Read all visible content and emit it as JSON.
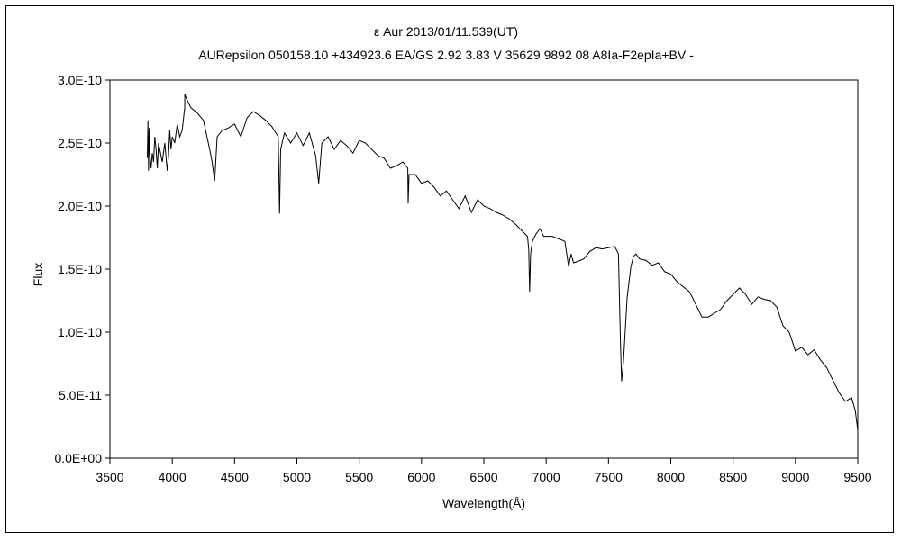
{
  "chart_data": {
    "type": "line",
    "title": "ε  Aur   2013/01/11.539(UT)",
    "subtitle": "AURepsilon 050158.10 +434923.6 EA/GS 2.92 3.83 V 35629 9892 08 A8Ia-F2epIa+BV -",
    "xlabel": "Wavelength(Å)",
    "ylabel": "Flux",
    "xlim": [
      3500,
      9500
    ],
    "ylim": [
      0,
      3e-10
    ],
    "xticks": [
      "3500",
      "4000",
      "4500",
      "5000",
      "5500",
      "6000",
      "6500",
      "7000",
      "7500",
      "8000",
      "8500",
      "9000",
      "9500"
    ],
    "yticks": [
      "0.0E+00",
      "5.0E-11",
      "1.0E-10",
      "1.5E-10",
      "2.0E-10",
      "2.5E-10",
      "3.0E-10"
    ],
    "grid": false,
    "legend": "none",
    "line_color": "#000000",
    "series": [
      {
        "x": [
          3800,
          3805,
          3810,
          3815,
          3820,
          3830,
          3840,
          3850,
          3860,
          3870,
          3880,
          3890,
          3900,
          3920,
          3940,
          3960,
          3970,
          3980,
          3990,
          4000,
          4020,
          4040,
          4060,
          4080,
          4100,
          4101,
          4110,
          4130,
          4150,
          4200,
          4250,
          4300,
          4320,
          4340,
          4345,
          4360,
          4400,
          4450,
          4500,
          4550,
          4600,
          4650,
          4700,
          4750,
          4800,
          4850,
          4861,
          4870,
          4900,
          4950,
          5000,
          5050,
          5100,
          5150,
          5175,
          5200,
          5250,
          5300,
          5350,
          5400,
          5450,
          5500,
          5550,
          5600,
          5650,
          5700,
          5750,
          5800,
          5850,
          5890,
          5893,
          5900,
          5950,
          6000,
          6050,
          6100,
          6150,
          6200,
          6250,
          6300,
          6350,
          6400,
          6450,
          6500,
          6550,
          6600,
          6650,
          6700,
          6750,
          6800,
          6850,
          6860,
          6867,
          6875,
          6890,
          6920,
          6950,
          6980,
          7000,
          7050,
          7100,
          7150,
          7180,
          7200,
          7220,
          7250,
          7300,
          7350,
          7400,
          7450,
          7500,
          7550,
          7580,
          7595,
          7605,
          7620,
          7650,
          7680,
          7700,
          7720,
          7750,
          7800,
          7850,
          7900,
          7950,
          8000,
          8050,
          8100,
          8150,
          8200,
          8250,
          8300,
          8350,
          8400,
          8450,
          8500,
          8550,
          8600,
          8650,
          8700,
          8750,
          8800,
          8850,
          8900,
          8950,
          9000,
          9050,
          9100,
          9150,
          9200,
          9250,
          9300,
          9350,
          9400,
          9450,
          9480,
          9500
        ],
        "y": [
          2.38e-10,
          2.68e-10,
          2.28e-10,
          2.62e-10,
          2.4e-10,
          2.3e-10,
          2.42e-10,
          2.35e-10,
          2.55e-10,
          2.45e-10,
          2.3e-10,
          2.5e-10,
          2.45e-10,
          2.35e-10,
          2.5e-10,
          2.28e-10,
          2.4e-10,
          2.6e-10,
          2.45e-10,
          2.55e-10,
          2.5e-10,
          2.65e-10,
          2.55e-10,
          2.6e-10,
          2.78e-10,
          2.89e-10,
          2.86e-10,
          2.82e-10,
          2.78e-10,
          2.74e-10,
          2.68e-10,
          2.45e-10,
          2.35e-10,
          2.2e-10,
          2.28e-10,
          2.55e-10,
          2.6e-10,
          2.62e-10,
          2.65e-10,
          2.55e-10,
          2.7e-10,
          2.75e-10,
          2.72e-10,
          2.68e-10,
          2.63e-10,
          2.55e-10,
          1.94e-10,
          2.45e-10,
          2.58e-10,
          2.5e-10,
          2.58e-10,
          2.48e-10,
          2.58e-10,
          2.4e-10,
          2.18e-10,
          2.5e-10,
          2.55e-10,
          2.45e-10,
          2.52e-10,
          2.48e-10,
          2.42e-10,
          2.52e-10,
          2.5e-10,
          2.45e-10,
          2.4e-10,
          2.38e-10,
          2.3e-10,
          2.32e-10,
          2.35e-10,
          2.3e-10,
          2.02e-10,
          2.25e-10,
          2.25e-10,
          2.18e-10,
          2.2e-10,
          2.15e-10,
          2.08e-10,
          2.12e-10,
          2.05e-10,
          1.98e-10,
          2.08e-10,
          1.95e-10,
          2.05e-10,
          2e-10,
          1.98e-10,
          1.95e-10,
          1.93e-10,
          1.9e-10,
          1.86e-10,
          1.81e-10,
          1.76e-10,
          1.66e-10,
          1.32e-10,
          1.62e-10,
          1.72e-10,
          1.78e-10,
          1.82e-10,
          1.76e-10,
          1.76e-10,
          1.76e-10,
          1.74e-10,
          1.72e-10,
          1.52e-10,
          1.62e-10,
          1.55e-10,
          1.56e-10,
          1.58e-10,
          1.64e-10,
          1.67e-10,
          1.66e-10,
          1.67e-10,
          1.68e-10,
          1.62e-10,
          9.5e-11,
          6.1e-11,
          7.6e-11,
          1.28e-10,
          1.52e-10,
          1.6e-10,
          1.62e-10,
          1.58e-10,
          1.57e-10,
          1.53e-10,
          1.55e-10,
          1.48e-10,
          1.46e-10,
          1.4e-10,
          1.36e-10,
          1.32e-10,
          1.22e-10,
          1.12e-10,
          1.12e-10,
          1.15e-10,
          1.18e-10,
          1.25e-10,
          1.3e-10,
          1.35e-10,
          1.3e-10,
          1.22e-10,
          1.28e-10,
          1.26e-10,
          1.25e-10,
          1.2e-10,
          1.05e-10,
          1e-10,
          8.5e-11,
          8.8e-11,
          8.2e-11,
          8.6e-11,
          7.8e-11,
          7.2e-11,
          6.2e-11,
          5.2e-11,
          4.5e-11,
          4.8e-11,
          3.8e-11,
          2.2e-11
        ]
      }
    ]
  }
}
